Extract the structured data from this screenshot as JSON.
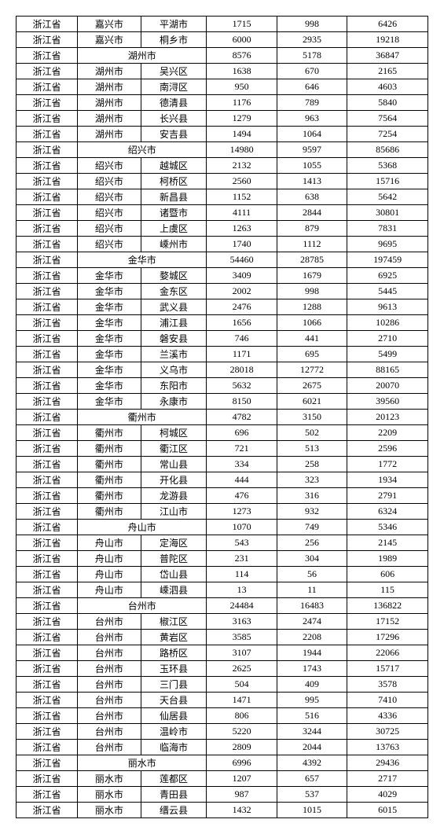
{
  "table": {
    "rows": [
      {
        "type": "row",
        "cells": [
          "浙江省",
          "嘉兴市",
          "平湖市",
          "1715",
          "998",
          "6426"
        ]
      },
      {
        "type": "row",
        "cells": [
          "浙江省",
          "嘉兴市",
          "桐乡市",
          "6000",
          "2935",
          "19218"
        ]
      },
      {
        "type": "summary",
        "province": "浙江省",
        "city": "湖州市",
        "nums": [
          "8576",
          "5178",
          "36847"
        ]
      },
      {
        "type": "row",
        "cells": [
          "浙江省",
          "湖州市",
          "吴兴区",
          "1638",
          "670",
          "2165"
        ]
      },
      {
        "type": "row",
        "cells": [
          "浙江省",
          "湖州市",
          "南浔区",
          "950",
          "646",
          "4603"
        ]
      },
      {
        "type": "row",
        "cells": [
          "浙江省",
          "湖州市",
          "德清县",
          "1176",
          "789",
          "5840"
        ]
      },
      {
        "type": "row",
        "cells": [
          "浙江省",
          "湖州市",
          "长兴县",
          "1279",
          "963",
          "7564"
        ]
      },
      {
        "type": "row",
        "cells": [
          "浙江省",
          "湖州市",
          "安吉县",
          "1494",
          "1064",
          "7254"
        ]
      },
      {
        "type": "summary",
        "province": "浙江省",
        "city": "绍兴市",
        "nums": [
          "14980",
          "9597",
          "85686"
        ]
      },
      {
        "type": "row",
        "cells": [
          "浙江省",
          "绍兴市",
          "越城区",
          "2132",
          "1055",
          "5368"
        ]
      },
      {
        "type": "row",
        "cells": [
          "浙江省",
          "绍兴市",
          "柯桥区",
          "2560",
          "1413",
          "15716"
        ]
      },
      {
        "type": "row",
        "cells": [
          "浙江省",
          "绍兴市",
          "新昌县",
          "1152",
          "638",
          "5642"
        ]
      },
      {
        "type": "row",
        "cells": [
          "浙江省",
          "绍兴市",
          "诸暨市",
          "4111",
          "2844",
          "30801"
        ]
      },
      {
        "type": "row",
        "cells": [
          "浙江省",
          "绍兴市",
          "上虞区",
          "1263",
          "879",
          "7831"
        ]
      },
      {
        "type": "row",
        "cells": [
          "浙江省",
          "绍兴市",
          "嵊州市",
          "1740",
          "1112",
          "9695"
        ]
      },
      {
        "type": "summary",
        "province": "浙江省",
        "city": "金华市",
        "nums": [
          "54460",
          "28785",
          "197459"
        ]
      },
      {
        "type": "row",
        "cells": [
          "浙江省",
          "金华市",
          "婺城区",
          "3409",
          "1679",
          "6925"
        ]
      },
      {
        "type": "row",
        "cells": [
          "浙江省",
          "金华市",
          "金东区",
          "2002",
          "998",
          "5445"
        ]
      },
      {
        "type": "row",
        "cells": [
          "浙江省",
          "金华市",
          "武义县",
          "2476",
          "1288",
          "9613"
        ]
      },
      {
        "type": "row",
        "cells": [
          "浙江省",
          "金华市",
          "浦江县",
          "1656",
          "1066",
          "10286"
        ]
      },
      {
        "type": "row",
        "cells": [
          "浙江省",
          "金华市",
          "磐安县",
          "746",
          "441",
          "2710"
        ]
      },
      {
        "type": "row",
        "cells": [
          "浙江省",
          "金华市",
          "兰溪市",
          "1171",
          "695",
          "5499"
        ]
      },
      {
        "type": "row",
        "cells": [
          "浙江省",
          "金华市",
          "义乌市",
          "28018",
          "12772",
          "88165"
        ]
      },
      {
        "type": "row",
        "cells": [
          "浙江省",
          "金华市",
          "东阳市",
          "5632",
          "2675",
          "20070"
        ]
      },
      {
        "type": "row",
        "cells": [
          "浙江省",
          "金华市",
          "永康市",
          "8150",
          "6021",
          "39560"
        ]
      },
      {
        "type": "summary",
        "province": "浙江省",
        "city": "衢州市",
        "nums": [
          "4782",
          "3150",
          "20123"
        ]
      },
      {
        "type": "row",
        "cells": [
          "浙江省",
          "衢州市",
          "柯城区",
          "696",
          "502",
          "2209"
        ]
      },
      {
        "type": "row",
        "cells": [
          "浙江省",
          "衢州市",
          "衢江区",
          "721",
          "513",
          "2596"
        ]
      },
      {
        "type": "row",
        "cells": [
          "浙江省",
          "衢州市",
          "常山县",
          "334",
          "258",
          "1772"
        ]
      },
      {
        "type": "row",
        "cells": [
          "浙江省",
          "衢州市",
          "开化县",
          "444",
          "323",
          "1934"
        ]
      },
      {
        "type": "row",
        "cells": [
          "浙江省",
          "衢州市",
          "龙游县",
          "476",
          "316",
          "2791"
        ]
      },
      {
        "type": "row",
        "cells": [
          "浙江省",
          "衢州市",
          "江山市",
          "1273",
          "932",
          "6324"
        ]
      },
      {
        "type": "summary",
        "province": "浙江省",
        "city": "舟山市",
        "nums": [
          "1070",
          "749",
          "5346"
        ]
      },
      {
        "type": "row",
        "cells": [
          "浙江省",
          "舟山市",
          "定海区",
          "543",
          "256",
          "2145"
        ]
      },
      {
        "type": "row",
        "cells": [
          "浙江省",
          "舟山市",
          "普陀区",
          "231",
          "304",
          "1989"
        ]
      },
      {
        "type": "row",
        "cells": [
          "浙江省",
          "舟山市",
          "岱山县",
          "114",
          "56",
          "606"
        ]
      },
      {
        "type": "row",
        "cells": [
          "浙江省",
          "舟山市",
          "嵊泗县",
          "13",
          "11",
          "115"
        ]
      },
      {
        "type": "summary",
        "province": "浙江省",
        "city": "台州市",
        "nums": [
          "24484",
          "16483",
          "136822"
        ]
      },
      {
        "type": "row",
        "cells": [
          "浙江省",
          "台州市",
          "椒江区",
          "3163",
          "2474",
          "17152"
        ]
      },
      {
        "type": "row",
        "cells": [
          "浙江省",
          "台州市",
          "黄岩区",
          "3585",
          "2208",
          "17296"
        ]
      },
      {
        "type": "row",
        "cells": [
          "浙江省",
          "台州市",
          "路桥区",
          "3107",
          "1944",
          "22066"
        ]
      },
      {
        "type": "row",
        "cells": [
          "浙江省",
          "台州市",
          "玉环县",
          "2625",
          "1743",
          "15717"
        ]
      },
      {
        "type": "row",
        "cells": [
          "浙江省",
          "台州市",
          "三门县",
          "504",
          "409",
          "3578"
        ]
      },
      {
        "type": "row",
        "cells": [
          "浙江省",
          "台州市",
          "天台县",
          "1471",
          "995",
          "7410"
        ]
      },
      {
        "type": "row",
        "cells": [
          "浙江省",
          "台州市",
          "仙居县",
          "806",
          "516",
          "4336"
        ]
      },
      {
        "type": "row",
        "cells": [
          "浙江省",
          "台州市",
          "温岭市",
          "5220",
          "3244",
          "30725"
        ]
      },
      {
        "type": "row",
        "cells": [
          "浙江省",
          "台州市",
          "临海市",
          "2809",
          "2044",
          "13763"
        ]
      },
      {
        "type": "summary",
        "province": "浙江省",
        "city": "丽水市",
        "nums": [
          "6996",
          "4392",
          "29436"
        ]
      },
      {
        "type": "row",
        "cells": [
          "浙江省",
          "丽水市",
          "莲都区",
          "1207",
          "657",
          "2717"
        ]
      },
      {
        "type": "row",
        "cells": [
          "浙江省",
          "丽水市",
          "青田县",
          "987",
          "537",
          "4029"
        ]
      },
      {
        "type": "row",
        "cells": [
          "浙江省",
          "丽水市",
          "缙云县",
          "1432",
          "1015",
          "6015"
        ]
      }
    ]
  }
}
